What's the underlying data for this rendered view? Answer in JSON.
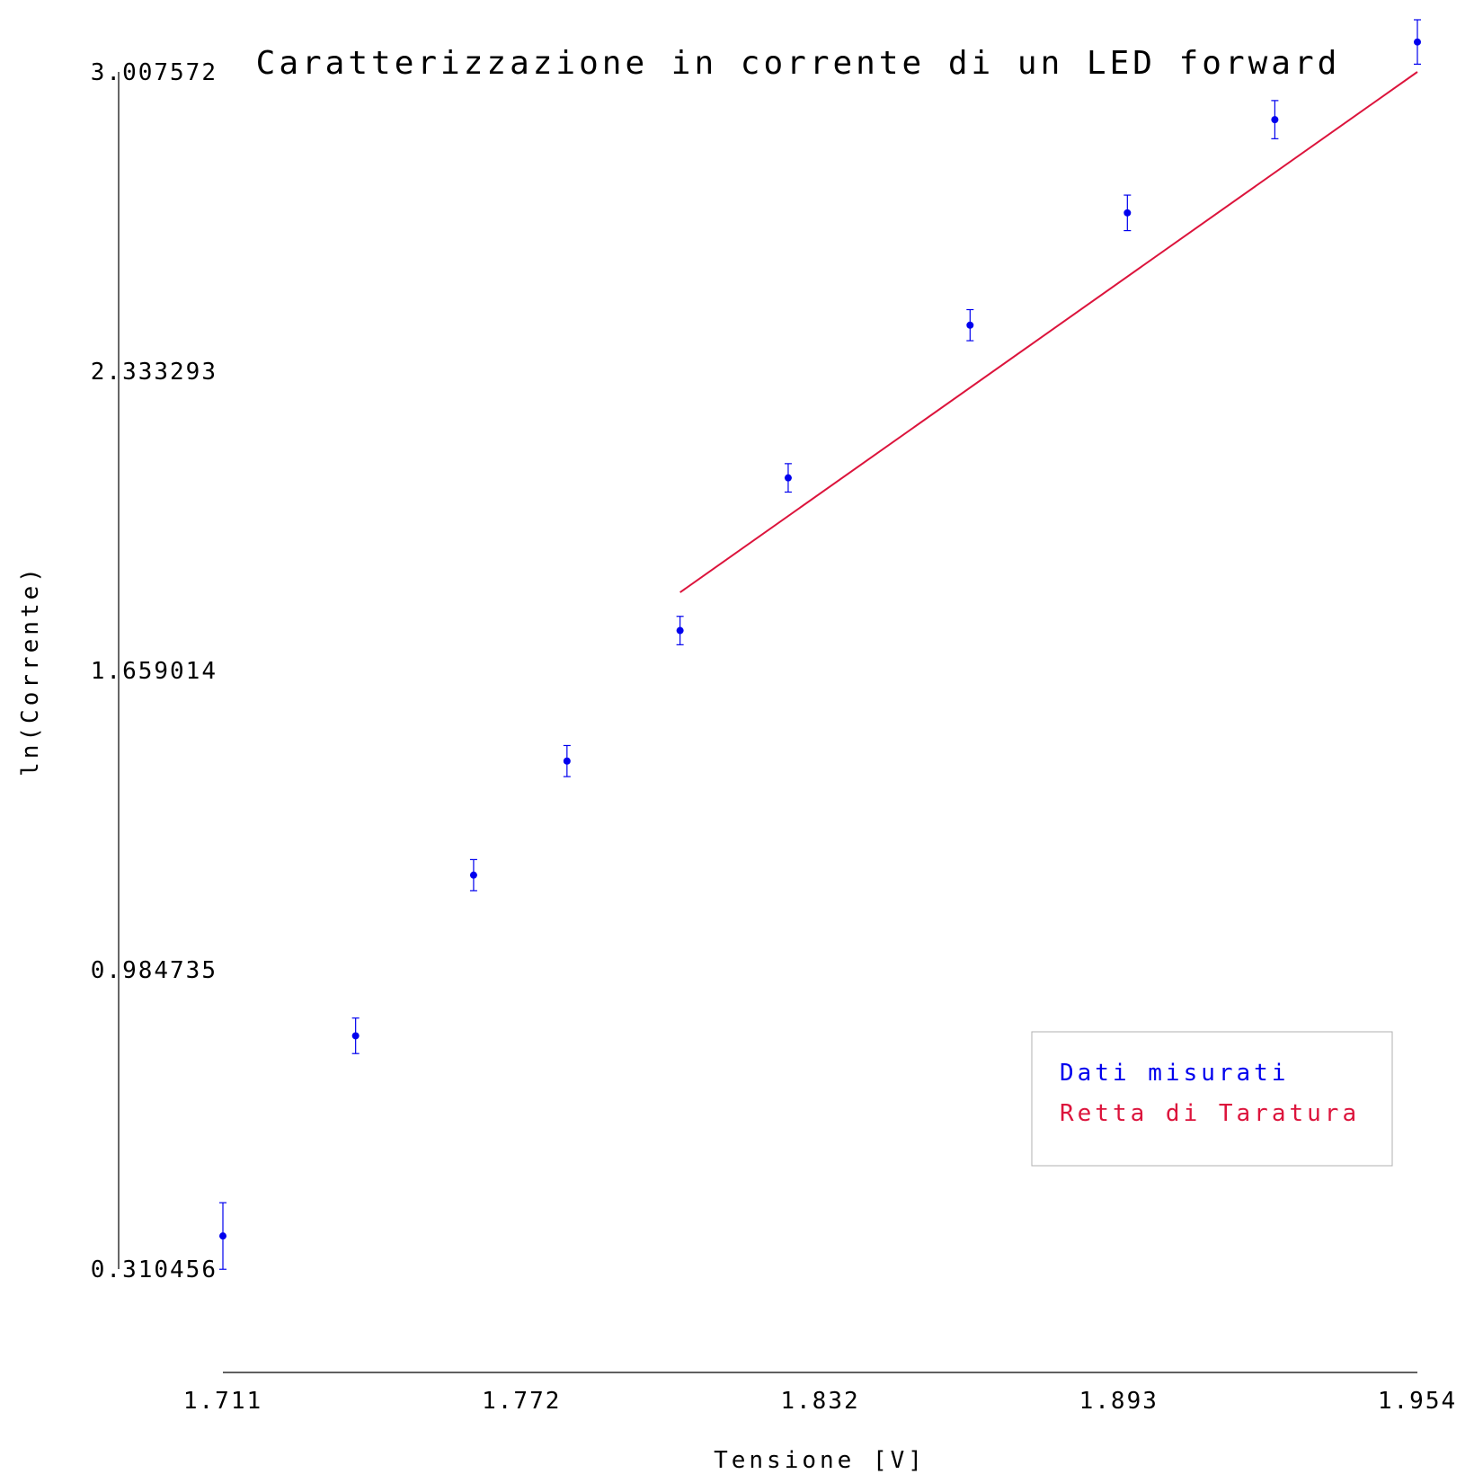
{
  "chart_data": {
    "type": "scatter",
    "title": "Caratterizzazione in corrente di un LED forward",
    "xlabel": "Tensione [V]",
    "ylabel": "ln(Corrente)",
    "xlim": [
      1.711,
      1.954
    ],
    "ylim": [
      0.310456,
      3.007572
    ],
    "x_ticks": [
      "1.711",
      "1.772",
      "1.832",
      "1.893",
      "1.954"
    ],
    "y_ticks": [
      "0.310456",
      "0.984735",
      "1.659014",
      "2.333293",
      "3.007572"
    ],
    "grid": false,
    "legend_position": "bottom-right",
    "colors": {
      "data": "#0000ee",
      "fit": "#dc143c",
      "axis": "#000000"
    },
    "series": [
      {
        "name": "Dati misurati",
        "x": [
          1.711,
          1.738,
          1.762,
          1.781,
          1.804,
          1.826,
          1.863,
          1.895,
          1.925,
          1.954
        ],
        "y": [
          0.385,
          0.836,
          1.198,
          1.455,
          1.749,
          2.093,
          2.437,
          2.69,
          2.9,
          3.075
        ],
        "yerr": [
          0.075,
          0.04,
          0.035,
          0.035,
          0.032,
          0.032,
          0.035,
          0.04,
          0.043,
          0.05
        ]
      },
      {
        "name": "Retta di Taratura",
        "type": "line",
        "x": [
          1.804,
          1.954
        ],
        "y": [
          1.835,
          3.007572
        ]
      }
    ]
  }
}
